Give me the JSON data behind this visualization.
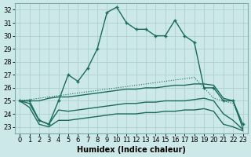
{
  "xlabel": "Humidex (Indice chaleur)",
  "background_color": "#cde8e8",
  "grid_color": "#a8cccc",
  "line_color": "#1a6b5a",
  "xlim": [
    -0.5,
    23.5
  ],
  "ylim": [
    22.5,
    32.5
  ],
  "yticks": [
    23,
    24,
    25,
    26,
    27,
    28,
    29,
    30,
    31,
    32
  ],
  "xticks": [
    0,
    1,
    2,
    3,
    4,
    5,
    6,
    7,
    8,
    9,
    10,
    11,
    12,
    13,
    14,
    15,
    16,
    17,
    18,
    19,
    20,
    21,
    22,
    23
  ],
  "series_main": [
    25.0,
    25.0,
    23.5,
    23.2,
    25.0,
    27.0,
    26.5,
    27.5,
    29.0,
    31.8,
    32.2,
    31.0,
    30.5,
    30.5,
    30.0,
    30.0,
    31.2,
    30.0,
    29.5,
    26.0,
    26.0,
    25.0,
    25.0,
    23.2
  ],
  "series_flat1": [
    25.0,
    25.0,
    25.0,
    25.2,
    25.3,
    25.3,
    25.4,
    25.5,
    25.6,
    25.7,
    25.8,
    25.9,
    25.9,
    26.0,
    26.0,
    26.1,
    26.2,
    26.2,
    26.3,
    26.3,
    26.2,
    25.2,
    25.0,
    22.9
  ],
  "series_flat2": [
    25.0,
    24.8,
    23.5,
    23.2,
    24.3,
    24.2,
    24.3,
    24.4,
    24.5,
    24.6,
    24.7,
    24.8,
    24.8,
    24.9,
    24.9,
    25.0,
    25.0,
    25.0,
    25.1,
    25.2,
    25.0,
    24.0,
    23.5,
    22.8
  ],
  "series_flat3": [
    25.0,
    24.5,
    23.2,
    23.0,
    23.5,
    23.5,
    23.6,
    23.7,
    23.8,
    23.9,
    24.0,
    24.0,
    24.0,
    24.1,
    24.1,
    24.2,
    24.2,
    24.3,
    24.3,
    24.4,
    24.2,
    23.2,
    23.0,
    22.7
  ],
  "series_diagonal": [
    25.0,
    25.1,
    25.2,
    25.3,
    25.4,
    25.5,
    25.6,
    25.7,
    25.8,
    25.9,
    26.0,
    26.1,
    26.2,
    26.3,
    26.4,
    26.5,
    26.6,
    26.7,
    26.8,
    26.0,
    25.2,
    25.0,
    24.8,
    23.2
  ],
  "tick_fontsize": 6,
  "xlabel_fontsize": 7,
  "linewidth": 1.0
}
